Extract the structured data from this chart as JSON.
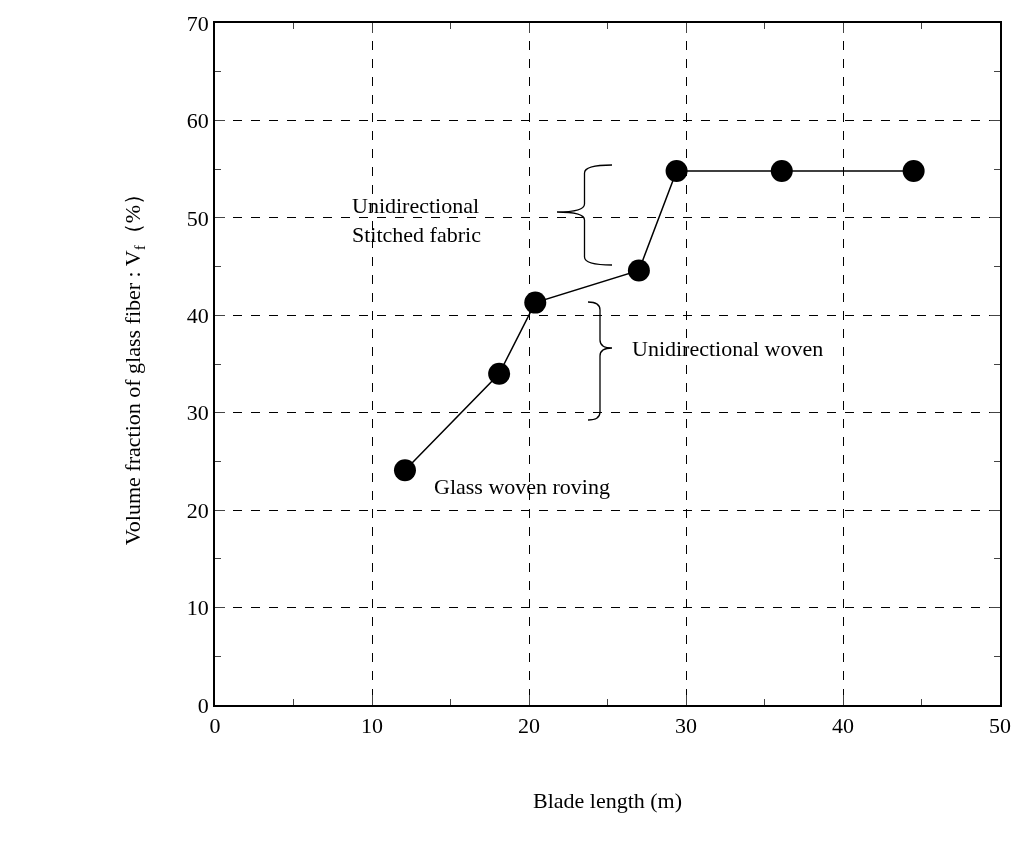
{
  "chart_data": {
    "type": "line",
    "xlabel": "Blade length (m)",
    "ylabel": "Volume fraction of glass fiber : V$_{f}$（%）",
    "x": [
      12.1,
      18.1,
      20.4,
      27,
      29.4,
      36.1,
      44.5
    ],
    "series": [
      {
        "color": "#000000",
        "values": [
          24.1,
          34,
          41.3,
          44.6,
          54.8,
          54.8,
          54.8
        ]
      }
    ],
    "xlim": [
      0,
      50
    ],
    "ylim": [
      0,
      70
    ],
    "xticks": [
      0,
      {
        "value": 5,
        "label": null
      },
      10,
      {
        "value": 15,
        "label": null
      },
      20,
      {
        "value": 25,
        "label": null
      },
      30,
      {
        "value": 35,
        "label": null
      },
      40,
      {
        "value": 45,
        "label": null
      },
      50
    ],
    "yticks": [
      0,
      {
        "value": 5,
        "label": null
      },
      10,
      {
        "value": 15,
        "label": null
      },
      20,
      {
        "value": 25,
        "label": null
      },
      30,
      {
        "value": 35,
        "label": null
      },
      40,
      {
        "value": 45,
        "label": null
      },
      50,
      {
        "value": 55,
        "label": null
      },
      60,
      {
        "value": 65,
        "label": null
      },
      70
    ],
    "grid": true,
    "marker": "circle",
    "line_style": "solid",
    "annotations": [
      "Unidirectional\nStitched fabric",
      "Unidirectional woven",
      "Glass woven roving"
    ]
  }
}
